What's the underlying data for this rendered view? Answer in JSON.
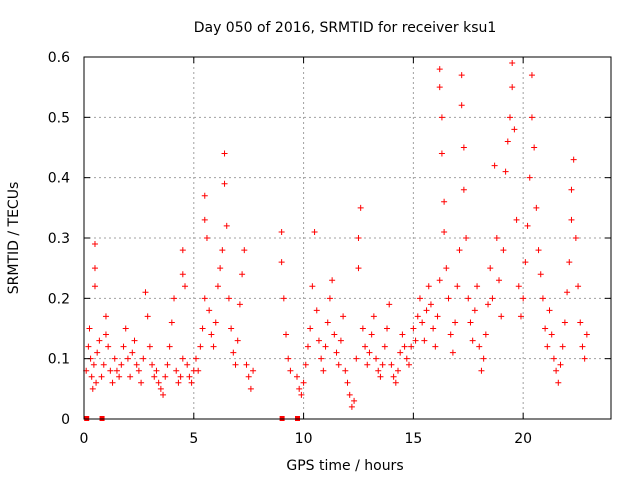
{
  "chart_data": {
    "type": "scatter",
    "title": "Day 050 of 2016, SRMTID for receiver ksu1",
    "xlabel": "GPS time / hours",
    "ylabel": "SRMTID / TECUs",
    "xlim": [
      0,
      24
    ],
    "ylim": [
      0,
      0.6
    ],
    "xticks": [
      0,
      5,
      10,
      15,
      20
    ],
    "xtick_labels": [
      "0",
      "5",
      "10",
      "15",
      "20"
    ],
    "yticks": [
      0,
      0.1,
      0.2,
      0.3,
      0.4,
      0.5,
      0.6
    ],
    "ytick_labels": [
      "0",
      "0.1",
      "0.2",
      "0.3",
      "0.4",
      "0.5",
      "0.6"
    ],
    "grid": true,
    "marker": "+",
    "color": "#ff0000",
    "series": [
      {
        "name": "SRMTID",
        "points": [
          [
            0.1,
            0.08
          ],
          [
            0.2,
            0.12
          ],
          [
            0.25,
            0.15
          ],
          [
            0.3,
            0.1
          ],
          [
            0.35,
            0.07
          ],
          [
            0.4,
            0.05
          ],
          [
            0.45,
            0.09
          ],
          [
            0.5,
            0.22
          ],
          [
            0.5,
            0.25
          ],
          [
            0.5,
            0.29
          ],
          [
            0.55,
            0.06
          ],
          [
            0.6,
            0.11
          ],
          [
            0.7,
            0.13
          ],
          [
            0.8,
            0.07
          ],
          [
            0.9,
            0.09
          ],
          [
            1.0,
            0.14
          ],
          [
            1.0,
            0.17
          ],
          [
            1.1,
            0.12
          ],
          [
            1.2,
            0.08
          ],
          [
            1.3,
            0.06
          ],
          [
            1.4,
            0.1
          ],
          [
            1.5,
            0.08
          ],
          [
            1.6,
            0.07
          ],
          [
            1.7,
            0.09
          ],
          [
            1.8,
            0.12
          ],
          [
            1.9,
            0.15
          ],
          [
            2.0,
            0.1
          ],
          [
            2.1,
            0.07
          ],
          [
            2.2,
            0.11
          ],
          [
            2.3,
            0.13
          ],
          [
            2.4,
            0.09
          ],
          [
            2.5,
            0.08
          ],
          [
            2.6,
            0.06
          ],
          [
            2.7,
            0.1
          ],
          [
            2.8,
            0.21
          ],
          [
            2.9,
            0.17
          ],
          [
            3.0,
            0.12
          ],
          [
            3.1,
            0.09
          ],
          [
            3.2,
            0.07
          ],
          [
            3.3,
            0.08
          ],
          [
            3.4,
            0.06
          ],
          [
            3.5,
            0.05
          ],
          [
            3.6,
            0.04
          ],
          [
            3.7,
            0.07
          ],
          [
            3.8,
            0.09
          ],
          [
            3.9,
            0.12
          ],
          [
            4.0,
            0.16
          ],
          [
            4.1,
            0.2
          ],
          [
            4.2,
            0.08
          ],
          [
            4.3,
            0.06
          ],
          [
            4.4,
            0.07
          ],
          [
            4.5,
            0.1
          ],
          [
            4.5,
            0.24
          ],
          [
            4.5,
            0.28
          ],
          [
            4.6,
            0.22
          ],
          [
            4.7,
            0.09
          ],
          [
            4.8,
            0.07
          ],
          [
            4.9,
            0.06
          ],
          [
            5.0,
            0.08
          ],
          [
            5.1,
            0.1
          ],
          [
            5.2,
            0.08
          ],
          [
            5.3,
            0.12
          ],
          [
            5.4,
            0.15
          ],
          [
            5.5,
            0.2
          ],
          [
            5.5,
            0.33
          ],
          [
            5.5,
            0.37
          ],
          [
            5.6,
            0.3
          ],
          [
            5.7,
            0.18
          ],
          [
            5.8,
            0.14
          ],
          [
            5.9,
            0.12
          ],
          [
            6.0,
            0.16
          ],
          [
            6.1,
            0.22
          ],
          [
            6.2,
            0.25
          ],
          [
            6.3,
            0.28
          ],
          [
            6.4,
            0.39
          ],
          [
            6.4,
            0.44
          ],
          [
            6.5,
            0.32
          ],
          [
            6.6,
            0.2
          ],
          [
            6.7,
            0.15
          ],
          [
            6.8,
            0.11
          ],
          [
            6.9,
            0.09
          ],
          [
            7.0,
            0.13
          ],
          [
            7.1,
            0.19
          ],
          [
            7.2,
            0.24
          ],
          [
            7.3,
            0.28
          ],
          [
            7.4,
            0.09
          ],
          [
            7.5,
            0.07
          ],
          [
            7.6,
            0.05
          ],
          [
            7.7,
            0.08
          ],
          [
            9.0,
            0.31
          ],
          [
            9.0,
            0.26
          ],
          [
            9.1,
            0.2
          ],
          [
            9.2,
            0.14
          ],
          [
            9.3,
            0.1
          ],
          [
            9.4,
            0.08
          ],
          [
            9.7,
            0.07
          ],
          [
            9.8,
            0.05
          ],
          [
            9.9,
            0.04
          ],
          [
            10.0,
            0.06
          ],
          [
            10.1,
            0.09
          ],
          [
            10.2,
            0.12
          ],
          [
            10.3,
            0.15
          ],
          [
            10.4,
            0.22
          ],
          [
            10.5,
            0.31
          ],
          [
            10.6,
            0.18
          ],
          [
            10.7,
            0.13
          ],
          [
            10.8,
            0.1
          ],
          [
            10.9,
            0.08
          ],
          [
            11.0,
            0.12
          ],
          [
            11.1,
            0.16
          ],
          [
            11.2,
            0.2
          ],
          [
            11.3,
            0.23
          ],
          [
            11.4,
            0.14
          ],
          [
            11.5,
            0.11
          ],
          [
            11.6,
            0.09
          ],
          [
            11.7,
            0.13
          ],
          [
            11.8,
            0.17
          ],
          [
            11.9,
            0.08
          ],
          [
            12.0,
            0.06
          ],
          [
            12.1,
            0.04
          ],
          [
            12.2,
            0.02
          ],
          [
            12.3,
            0.03
          ],
          [
            12.4,
            0.1
          ],
          [
            12.5,
            0.25
          ],
          [
            12.5,
            0.3
          ],
          [
            12.6,
            0.35
          ],
          [
            12.7,
            0.15
          ],
          [
            12.8,
            0.12
          ],
          [
            12.9,
            0.09
          ],
          [
            13.0,
            0.11
          ],
          [
            13.1,
            0.14
          ],
          [
            13.2,
            0.17
          ],
          [
            13.3,
            0.1
          ],
          [
            13.4,
            0.08
          ],
          [
            13.5,
            0.07
          ],
          [
            13.6,
            0.09
          ],
          [
            13.7,
            0.12
          ],
          [
            13.8,
            0.15
          ],
          [
            13.9,
            0.19
          ],
          [
            14.0,
            0.09
          ],
          [
            14.1,
            0.07
          ],
          [
            14.2,
            0.06
          ],
          [
            14.3,
            0.08
          ],
          [
            14.4,
            0.11
          ],
          [
            14.5,
            0.14
          ],
          [
            14.6,
            0.12
          ],
          [
            14.7,
            0.1
          ],
          [
            14.8,
            0.09
          ],
          [
            14.9,
            0.12
          ],
          [
            15.0,
            0.15
          ],
          [
            15.1,
            0.13
          ],
          [
            15.2,
            0.17
          ],
          [
            15.3,
            0.2
          ],
          [
            15.4,
            0.16
          ],
          [
            15.5,
            0.13
          ],
          [
            15.6,
            0.18
          ],
          [
            15.7,
            0.22
          ],
          [
            15.8,
            0.19
          ],
          [
            15.9,
            0.15
          ],
          [
            16.0,
            0.12
          ],
          [
            16.1,
            0.17
          ],
          [
            16.2,
            0.23
          ],
          [
            16.2,
            0.55
          ],
          [
            16.2,
            0.58
          ],
          [
            16.3,
            0.5
          ],
          [
            16.3,
            0.44
          ],
          [
            16.4,
            0.36
          ],
          [
            16.4,
            0.31
          ],
          [
            16.5,
            0.25
          ],
          [
            16.6,
            0.2
          ],
          [
            16.7,
            0.14
          ],
          [
            16.8,
            0.11
          ],
          [
            16.9,
            0.16
          ],
          [
            17.0,
            0.22
          ],
          [
            17.1,
            0.28
          ],
          [
            17.2,
            0.57
          ],
          [
            17.2,
            0.52
          ],
          [
            17.3,
            0.45
          ],
          [
            17.3,
            0.38
          ],
          [
            17.4,
            0.3
          ],
          [
            17.5,
            0.2
          ],
          [
            17.6,
            0.16
          ],
          [
            17.7,
            0.13
          ],
          [
            17.8,
            0.18
          ],
          [
            17.9,
            0.22
          ],
          [
            18.0,
            0.12
          ],
          [
            18.1,
            0.08
          ],
          [
            18.2,
            0.1
          ],
          [
            18.3,
            0.14
          ],
          [
            18.4,
            0.19
          ],
          [
            18.5,
            0.25
          ],
          [
            18.6,
            0.2
          ],
          [
            18.7,
            0.42
          ],
          [
            18.8,
            0.3
          ],
          [
            18.9,
            0.23
          ],
          [
            19.0,
            0.17
          ],
          [
            19.1,
            0.28
          ],
          [
            19.2,
            0.41
          ],
          [
            19.3,
            0.46
          ],
          [
            19.4,
            0.5
          ],
          [
            19.5,
            0.55
          ],
          [
            19.5,
            0.59
          ],
          [
            19.6,
            0.48
          ],
          [
            19.7,
            0.33
          ],
          [
            19.8,
            0.22
          ],
          [
            19.9,
            0.17
          ],
          [
            20.0,
            0.2
          ],
          [
            20.1,
            0.26
          ],
          [
            20.2,
            0.32
          ],
          [
            20.3,
            0.4
          ],
          [
            20.4,
            0.5
          ],
          [
            20.4,
            0.57
          ],
          [
            20.5,
            0.45
          ],
          [
            20.6,
            0.35
          ],
          [
            20.7,
            0.28
          ],
          [
            20.8,
            0.24
          ],
          [
            20.9,
            0.2
          ],
          [
            21.0,
            0.15
          ],
          [
            21.1,
            0.12
          ],
          [
            21.2,
            0.18
          ],
          [
            21.3,
            0.14
          ],
          [
            21.4,
            0.1
          ],
          [
            21.5,
            0.08
          ],
          [
            21.6,
            0.06
          ],
          [
            21.7,
            0.09
          ],
          [
            21.8,
            0.12
          ],
          [
            21.9,
            0.16
          ],
          [
            22.0,
            0.21
          ],
          [
            22.1,
            0.26
          ],
          [
            22.2,
            0.33
          ],
          [
            22.2,
            0.38
          ],
          [
            22.3,
            0.43
          ],
          [
            22.4,
            0.3
          ],
          [
            22.5,
            0.22
          ],
          [
            22.6,
            0.16
          ],
          [
            22.7,
            0.12
          ],
          [
            22.8,
            0.1
          ],
          [
            22.9,
            0.14
          ]
        ]
      }
    ],
    "zero_markers_x": [
      0.1,
      0.8,
      9.0,
      9.7
    ]
  }
}
